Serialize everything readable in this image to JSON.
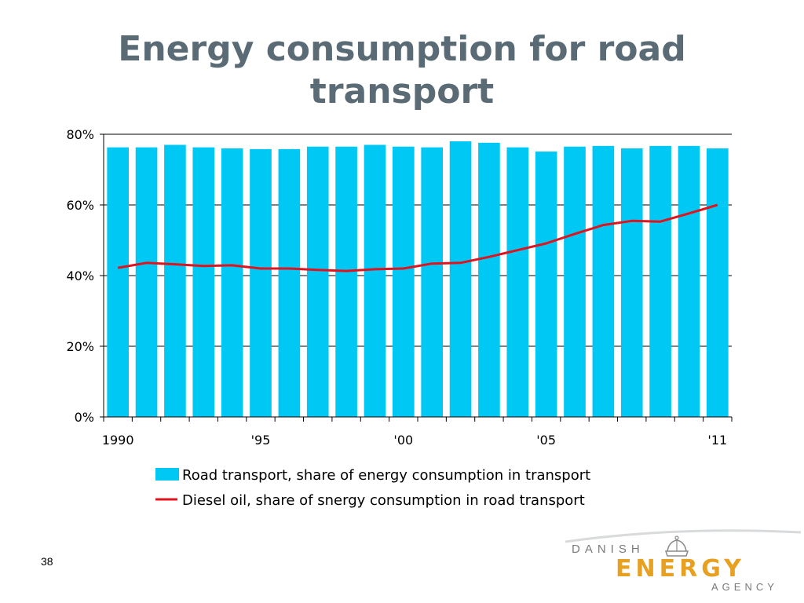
{
  "slide": {
    "title": "Energy consumption for road transport",
    "page_number": "38",
    "logo": {
      "line1": "DANISH",
      "line2": "ENERGY",
      "line3": "AGENCY",
      "crown_icon": "crown-icon",
      "accent": "#e8a020"
    }
  },
  "chart_data": {
    "type": "bar",
    "title": "",
    "xlabel": "",
    "ylabel": "",
    "ylim": [
      0,
      80
    ],
    "y_ticks": [
      0,
      20,
      40,
      60,
      80
    ],
    "y_tick_labels": [
      "0%",
      "20%",
      "40%",
      "60%",
      "80%"
    ],
    "categories": [
      "1990",
      "1991",
      "1992",
      "1993",
      "1994",
      "1995",
      "1996",
      "1997",
      "1998",
      "1999",
      "2000",
      "2001",
      "2002",
      "2003",
      "2004",
      "2005",
      "2006",
      "2007",
      "2008",
      "2009",
      "2010",
      "2011"
    ],
    "x_tick_labels": [
      {
        "category": "1990",
        "label": "1990"
      },
      {
        "category": "1995",
        "label": "'95"
      },
      {
        "category": "2000",
        "label": "'00"
      },
      {
        "category": "2005",
        "label": "'05"
      },
      {
        "category": "2011",
        "label": "'11"
      }
    ],
    "grid": true,
    "legend_position": "bottom",
    "series": [
      {
        "name": "Road transport, share of energy consumption in transport",
        "type": "bar",
        "color": "#00c8f5",
        "values": [
          76.3,
          76.3,
          77.0,
          76.3,
          76.0,
          75.8,
          75.8,
          76.5,
          76.5,
          77.0,
          76.5,
          76.3,
          78.0,
          77.6,
          76.3,
          75.1,
          76.5,
          76.7,
          76.0,
          76.7,
          76.7,
          76.0
        ]
      },
      {
        "name": "Diesel oil, share of snergy consumption in road transport",
        "type": "line",
        "color": "#e0141e",
        "values": [
          42.2,
          43.6,
          43.2,
          42.7,
          42.9,
          42.0,
          42.0,
          41.6,
          41.3,
          41.8,
          42.0,
          43.4,
          43.6,
          45.3,
          47.2,
          49.1,
          51.8,
          54.3,
          55.5,
          55.3,
          57.6,
          60.0
        ]
      }
    ]
  }
}
